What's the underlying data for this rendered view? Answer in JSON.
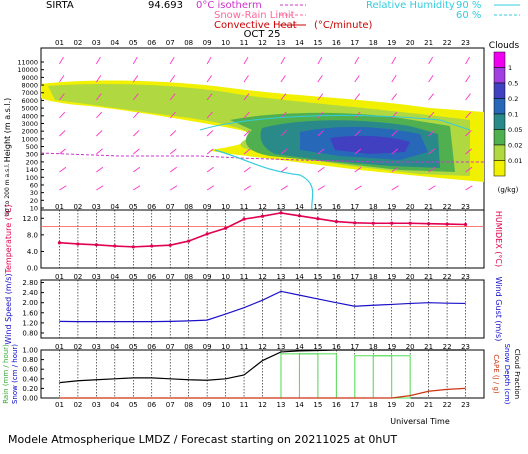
{
  "header": {
    "station": "SIRTA",
    "coord": "94.693",
    "legend": {
      "isotherm": "0°C isotherm",
      "snow_rain": "Snow-Rain Limit",
      "convective": "Convective Heat",
      "convective_unit": "(°C/minute)",
      "rh_label": "Relative Humidity",
      "rh_90": "90 %",
      "rh_60": "60 %"
    }
  },
  "footer": {
    "title": "Modele Atmospherique LMDZ / Forecast starting on 20211025 at 0hUT",
    "xaxis_label": "Universal Time"
  },
  "date_label": "OCT 25",
  "hours": [
    "01",
    "02",
    "03",
    "04",
    "05",
    "06",
    "07",
    "08",
    "09",
    "10",
    "11",
    "12",
    "13",
    "14",
    "15",
    "16",
    "17",
    "18",
    "19",
    "20",
    "21",
    "22",
    "23"
  ],
  "colors": {
    "temperature": "#e00050",
    "wind": "#1a10c8",
    "rain": "#55dd55",
    "snow": "#0000cc",
    "cape": "#cc3311",
    "snow_depth": "#0000cc",
    "rh": "#33ccdd",
    "isotherm": "#cc33cc",
    "wind_arrow": "#ff33cc",
    "grid_dotted": "#000000"
  },
  "chart_data": [
    {
      "type": "heatmap",
      "title": "Clouds",
      "ylabel": "Height (m a.s.l.)",
      "ylabel2": "Up to 200 m a.s.l.",
      "yticks": [
        "11000",
        "10000",
        "9000",
        "8000",
        "7000",
        "6000",
        "5000",
        "4000",
        "3000",
        "2000",
        "1000",
        "500",
        "300",
        "200",
        "140",
        "100",
        "60",
        "30",
        "20",
        "10"
      ],
      "colorbar_unit": "(g/kg)",
      "colorbar_levels": [
        "1",
        "0.5",
        "0.2",
        "0.1",
        "0.05",
        "0.02",
        "0.01"
      ],
      "colorbar_colors": [
        "#f000f0",
        "#a040e0",
        "#4040c0",
        "#2868b8",
        "#2a8a8a",
        "#50b050",
        "#b0d840",
        "#f0f000"
      ]
    },
    {
      "type": "line",
      "ylabel": "Temperature (°C)",
      "ylabel2": "HUMIDEX (°C)",
      "yticks": [
        "12.0",
        "8.0",
        "4.0",
        "0.0"
      ],
      "ylim": [
        0,
        14
      ],
      "reference_line": 10.0,
      "x": [
        "01",
        "02",
        "03",
        "04",
        "05",
        "06",
        "07",
        "08",
        "09",
        "10",
        "11",
        "12",
        "13",
        "14",
        "15",
        "16",
        "17",
        "18",
        "19",
        "20",
        "21",
        "22",
        "23"
      ],
      "series": [
        {
          "values": [
            6.1,
            5.8,
            5.6,
            5.3,
            5.1,
            5.3,
            5.5,
            6.5,
            8.2,
            9.6,
            11.8,
            12.5,
            13.3,
            12.6,
            11.9,
            11.2,
            10.9,
            10.8,
            10.8,
            10.8,
            10.7,
            10.6,
            10.5
          ]
        }
      ]
    },
    {
      "type": "line",
      "ylabel": "Wind Speed (m/s)",
      "ylabel2": "Wind Gust (m/s)",
      "yticks": [
        "2.80",
        "2.40",
        "2.00",
        "1.60",
        "1.20",
        "0.80"
      ],
      "ylim": [
        0.6,
        2.9
      ],
      "x": [
        "01",
        "02",
        "03",
        "04",
        "05",
        "06",
        "07",
        "08",
        "09",
        "10",
        "11",
        "12",
        "13",
        "14",
        "15",
        "16",
        "17",
        "18",
        "19",
        "20",
        "21",
        "22",
        "23"
      ],
      "series": [
        {
          "values": [
            1.26,
            1.25,
            1.25,
            1.25,
            1.25,
            1.25,
            1.26,
            1.28,
            1.31,
            1.55,
            1.8,
            2.1,
            2.45,
            2.3,
            2.15,
            2.0,
            1.86,
            1.9,
            1.93,
            1.97,
            2.0,
            1.98,
            1.97
          ]
        }
      ]
    },
    {
      "type": "line",
      "ylabel": "Rain (mm / hour)",
      "ylabel2": "Snow (cm / hour)",
      "ylabel3": "CAPE (J / g)",
      "ylabel4": "Snow Depth (cm)",
      "ylabel5": "Cloud Fraction",
      "yticks": [
        "1.00",
        "0.80",
        "0.60",
        "0.40",
        "0.20",
        "0.00"
      ],
      "ylim": [
        0,
        1
      ],
      "x": [
        "01",
        "02",
        "03",
        "04",
        "05",
        "06",
        "07",
        "08",
        "09",
        "10",
        "11",
        "12",
        "13",
        "14",
        "15",
        "16",
        "17",
        "18",
        "19",
        "20",
        "21",
        "22",
        "23"
      ],
      "series": [
        {
          "values": [
            0.32,
            0.36,
            0.38,
            0.4,
            0.42,
            0.42,
            0.4,
            0.38,
            0.37,
            0.4,
            0.48,
            0.78,
            0.96,
            0.98,
            0.99,
            1.0,
            1.0,
            1.0,
            1.0,
            1.0,
            1.0,
            1.0,
            1.0
          ]
        },
        {
          "values": [
            0,
            0,
            0,
            0,
            0,
            0,
            0,
            0,
            0,
            0,
            0,
            0,
            0,
            0.92,
            0.92,
            0,
            0,
            0.88,
            0.88,
            0,
            0,
            0,
            0
          ]
        },
        {
          "values": [
            0,
            0,
            0,
            0,
            0,
            0,
            0,
            0,
            0,
            0,
            0,
            0,
            0,
            0,
            0,
            0,
            0,
            0,
            0,
            0.05,
            0.14,
            0.18,
            0.2
          ]
        }
      ]
    }
  ]
}
